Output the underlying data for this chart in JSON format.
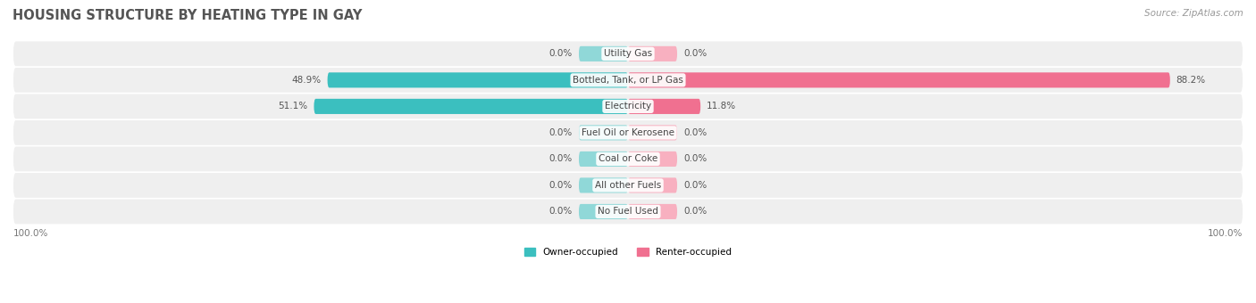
{
  "title": "HOUSING STRUCTURE BY HEATING TYPE IN GAY",
  "source": "Source: ZipAtlas.com",
  "categories": [
    "Utility Gas",
    "Bottled, Tank, or LP Gas",
    "Electricity",
    "Fuel Oil or Kerosene",
    "Coal or Coke",
    "All other Fuels",
    "No Fuel Used"
  ],
  "owner_values": [
    0.0,
    48.9,
    51.1,
    0.0,
    0.0,
    0.0,
    0.0
  ],
  "renter_values": [
    0.0,
    88.2,
    11.8,
    0.0,
    0.0,
    0.0,
    0.0
  ],
  "owner_color": "#3bbfbf",
  "renter_color": "#f07090",
  "owner_color_zero": "#90d8d8",
  "renter_color_zero": "#f8b0c0",
  "row_bg_color": "#efefef",
  "title_fontsize": 10.5,
  "source_fontsize": 7.5,
  "label_fontsize": 7.5,
  "bar_height": 0.58,
  "zero_bar_width": 8.0,
  "legend_owner": "Owner-occupied",
  "legend_renter": "Renter-occupied"
}
